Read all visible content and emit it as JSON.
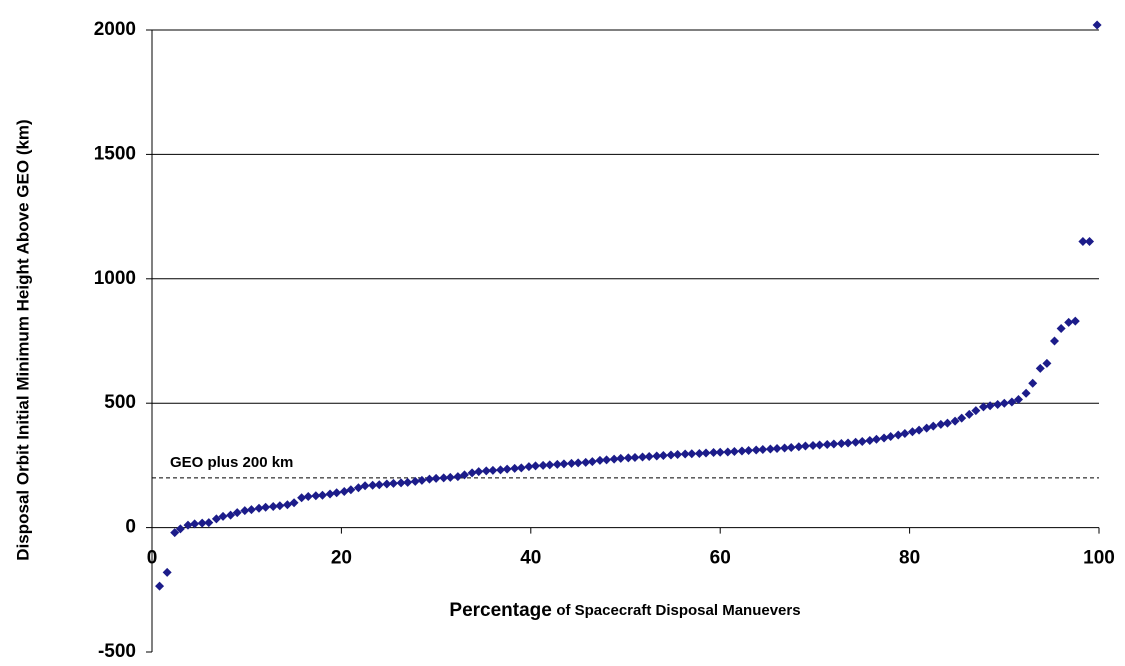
{
  "chart_data": {
    "type": "scatter",
    "ylabel": "Disposal Orbit Initial Minimum Height Above GEO  (km)",
    "xlabel": [
      "Percentage",
      "of Spacecraft Disposal Manuevers"
    ],
    "color": "#1c1c8a",
    "xlim": [
      0,
      100
    ],
    "xticks": [
      0,
      20,
      40,
      60,
      80,
      100
    ],
    "ylim": [
      -500,
      2000
    ],
    "yticks": [
      -500,
      0,
      500,
      1000,
      1500,
      2000
    ],
    "grid": true,
    "ref_line": {
      "value": 200,
      "label": "GEO plus 200 km"
    },
    "x": [
      0.8,
      1.6,
      2.4,
      3.0,
      3.8,
      4.5,
      5.3,
      6.0,
      6.8,
      7.5,
      8.3,
      9.0,
      9.8,
      10.5,
      11.3,
      12.0,
      12.8,
      13.5,
      14.3,
      15.0,
      15.8,
      16.5,
      17.3,
      18.0,
      18.8,
      19.5,
      20.3,
      21.0,
      21.8,
      22.5,
      23.3,
      24.0,
      24.8,
      25.5,
      26.3,
      27.0,
      27.8,
      28.5,
      29.3,
      30.0,
      30.8,
      31.5,
      32.3,
      33.0,
      33.8,
      34.5,
      35.3,
      36.0,
      36.8,
      37.5,
      38.3,
      39.0,
      39.8,
      40.5,
      41.3,
      42.0,
      42.8,
      43.5,
      44.3,
      45.0,
      45.8,
      46.5,
      47.3,
      48.0,
      48.8,
      49.5,
      50.3,
      51.0,
      51.8,
      52.5,
      53.3,
      54.0,
      54.8,
      55.5,
      56.3,
      57.0,
      57.8,
      58.5,
      59.3,
      60.0,
      60.8,
      61.5,
      62.3,
      63.0,
      63.8,
      64.5,
      65.3,
      66.0,
      66.8,
      67.5,
      68.3,
      69.0,
      69.8,
      70.5,
      71.3,
      72.0,
      72.8,
      73.5,
      74.3,
      75.0,
      75.8,
      76.5,
      77.3,
      78.0,
      78.8,
      79.5,
      80.3,
      81.0,
      81.8,
      82.5,
      83.3,
      84.0,
      84.8,
      85.5,
      86.3,
      87.0,
      87.8,
      88.5,
      89.3,
      90.0,
      90.8,
      91.5,
      92.3,
      93.0,
      93.8,
      94.5,
      95.3,
      96.0,
      96.8,
      97.5,
      98.3,
      99.0,
      99.8
    ],
    "values": [
      -235,
      -180,
      -20,
      -5,
      10,
      15,
      18,
      20,
      35,
      45,
      50,
      60,
      68,
      72,
      78,
      82,
      85,
      88,
      92,
      100,
      120,
      125,
      128,
      130,
      135,
      140,
      145,
      152,
      160,
      168,
      170,
      172,
      175,
      178,
      180,
      182,
      186,
      190,
      195,
      198,
      200,
      202,
      205,
      212,
      220,
      225,
      228,
      230,
      232,
      235,
      238,
      240,
      245,
      248,
      250,
      252,
      254,
      256,
      258,
      260,
      262,
      265,
      270,
      272,
      275,
      278,
      280,
      282,
      284,
      286,
      288,
      290,
      292,
      294,
      296,
      297,
      298,
      300,
      302,
      303,
      304,
      306,
      308,
      310,
      312,
      314,
      316,
      318,
      320,
      322,
      325,
      328,
      330,
      332,
      334,
      336,
      338,
      340,
      343,
      346,
      350,
      355,
      360,
      366,
      372,
      378,
      385,
      392,
      400,
      408,
      415,
      420,
      428,
      440,
      455,
      470,
      485,
      490,
      495,
      500,
      505,
      515,
      540,
      580,
      640,
      660,
      750,
      800,
      825,
      830,
      1150,
      1150,
      2020
    ]
  }
}
